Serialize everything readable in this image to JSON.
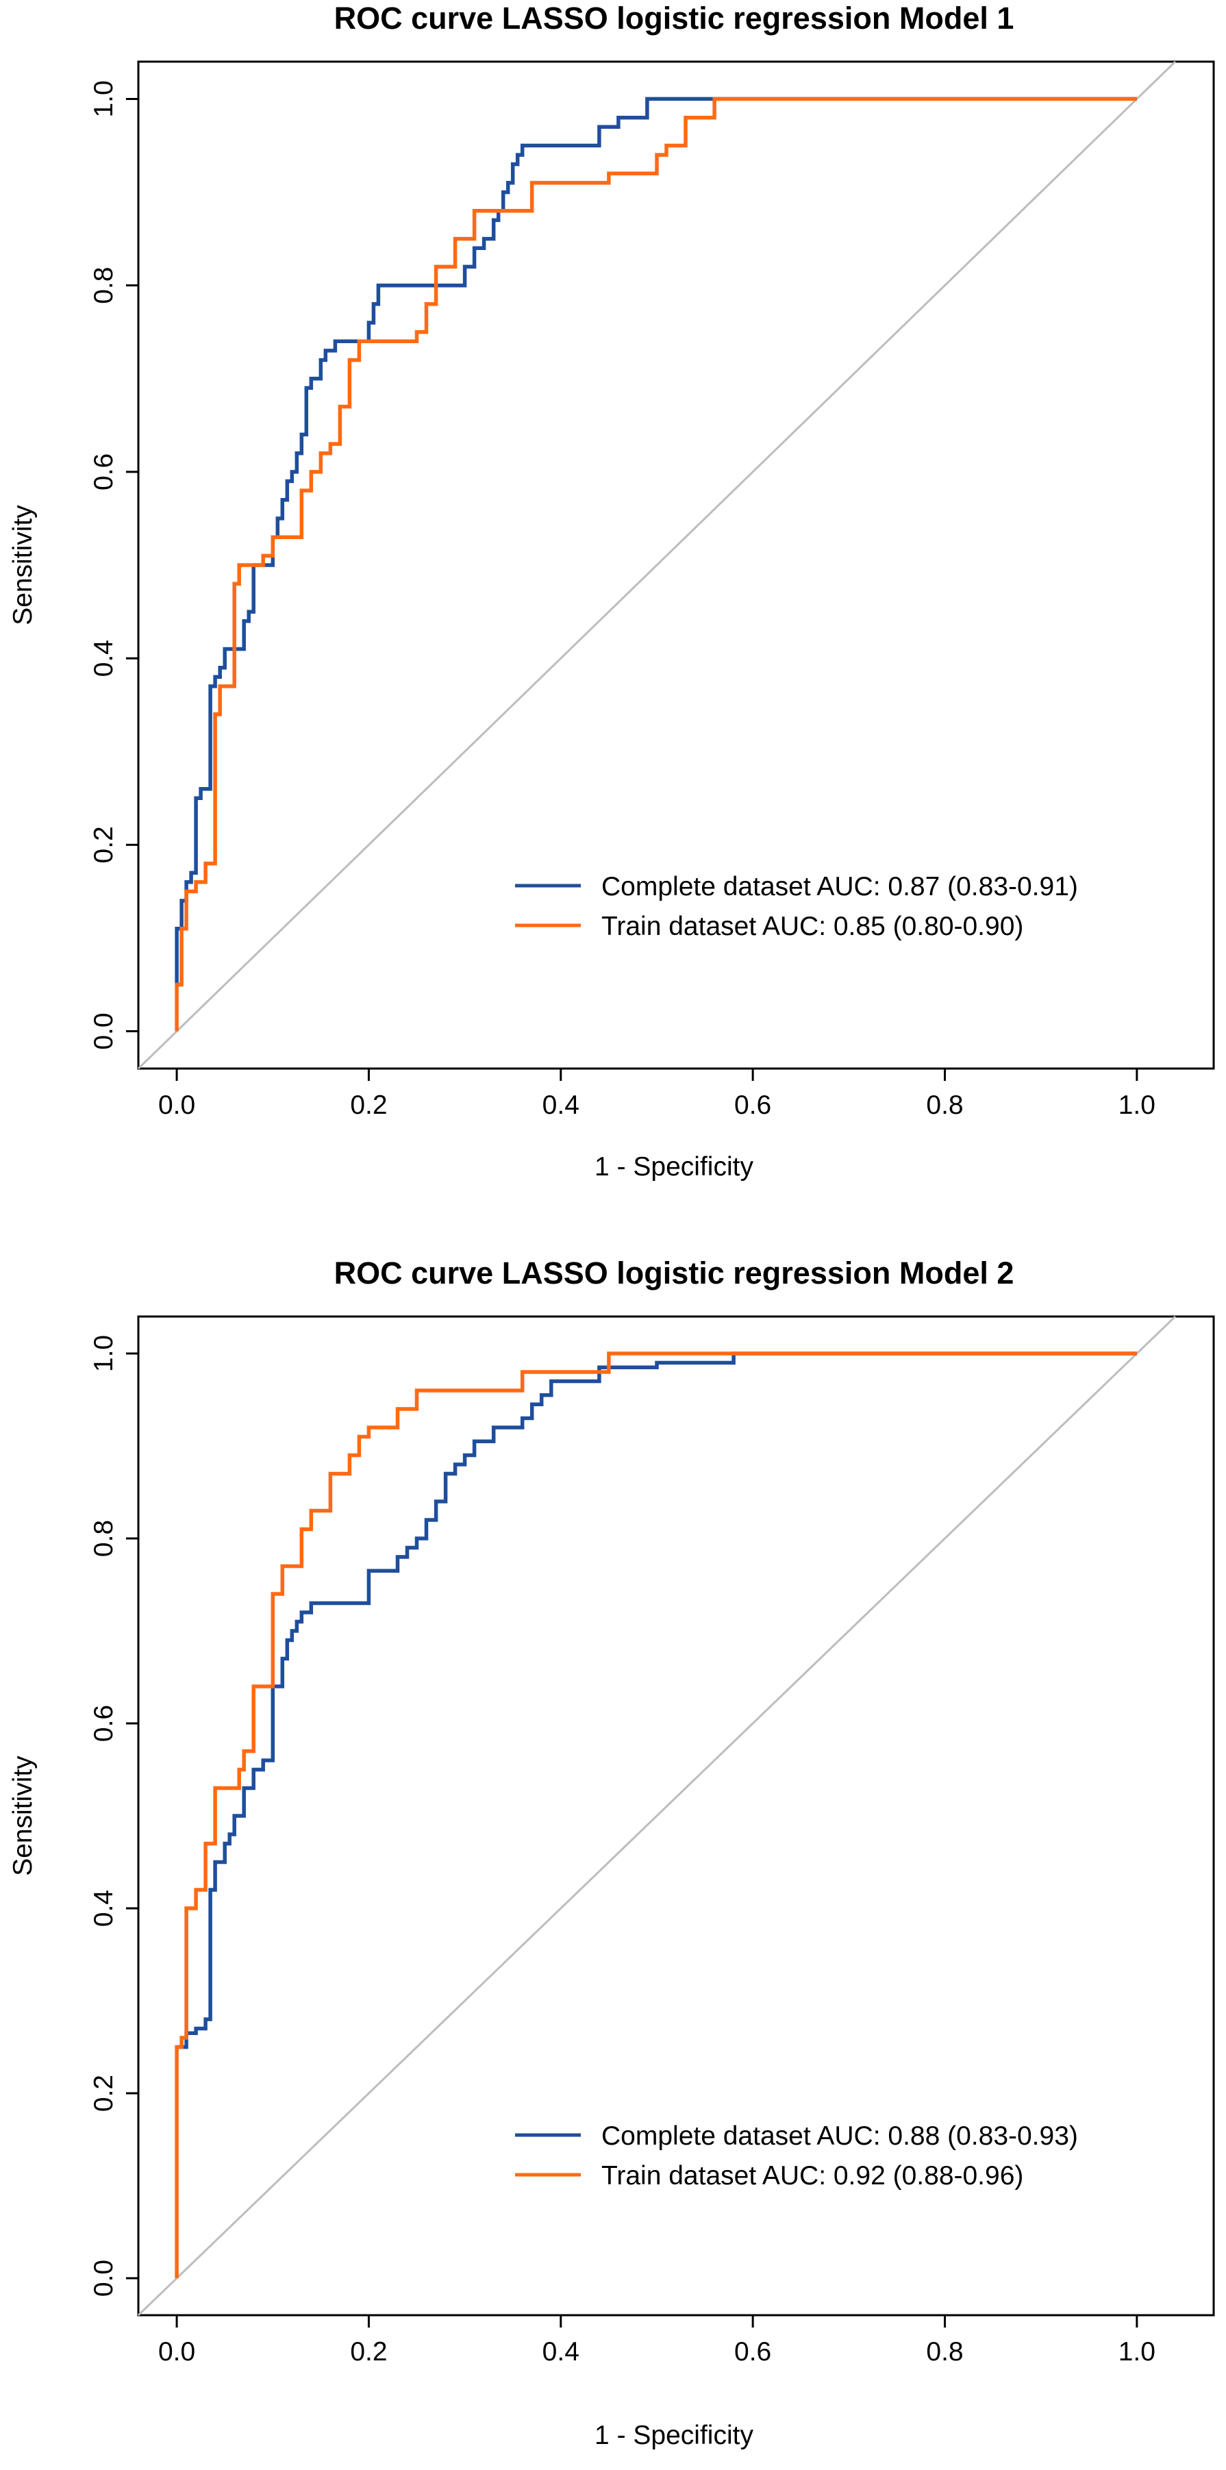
{
  "colors": {
    "complete": "#1f4e9c",
    "train": "#ff6a13",
    "diagonal": "#bdbdbd",
    "axis": "#000000"
  },
  "chart_data": [
    {
      "type": "line",
      "title": "ROC curve LASSO logistic regression Model 1",
      "xlabel": "1 - Specificity",
      "ylabel": "Sensitivity",
      "xlim": [
        -0.04,
        1.08
      ],
      "ylim": [
        -0.04,
        1.04
      ],
      "x_ticks": [
        0.0,
        0.2,
        0.4,
        0.6,
        0.8,
        1.0
      ],
      "x_tick_labels": [
        "0.0",
        "0.2",
        "0.4",
        "0.6",
        "0.8",
        "1.0"
      ],
      "y_ticks": [
        0.0,
        0.2,
        0.4,
        0.6,
        0.8,
        1.0
      ],
      "y_tick_labels": [
        "0.0",
        "0.2",
        "0.4",
        "0.6",
        "0.8",
        "1.0"
      ],
      "reference_line": "diagonal",
      "legend": {
        "placement": "bottom-right",
        "entries": [
          "Complete dataset AUC: 0.87 (0.83-0.91)",
          "Train dataset AUC: 0.85 (0.80-0.90)"
        ]
      },
      "series": [
        {
          "name": "Complete dataset AUC: 0.87 (0.83-0.91)",
          "color_key": "complete",
          "x": [
            0,
            0,
            0.005,
            0.005,
            0.01,
            0.01,
            0.015,
            0.015,
            0.02,
            0.02,
            0.025,
            0.025,
            0.035,
            0.035,
            0.04,
            0.04,
            0.045,
            0.045,
            0.05,
            0.05,
            0.06,
            0.06,
            0.07,
            0.07,
            0.075,
            0.075,
            0.08,
            0.08,
            0.09,
            0.09,
            0.1,
            0.1,
            0.105,
            0.105,
            0.11,
            0.11,
            0.115,
            0.115,
            0.12,
            0.12,
            0.125,
            0.125,
            0.13,
            0.13,
            0.135,
            0.135,
            0.14,
            0.14,
            0.15,
            0.15,
            0.155,
            0.155,
            0.16,
            0.16,
            0.165,
            0.165,
            0.17,
            0.17,
            0.2,
            0.2,
            0.205,
            0.205,
            0.21,
            0.21,
            0.3,
            0.3,
            0.31,
            0.31,
            0.32,
            0.32,
            0.33,
            0.33,
            0.335,
            0.335,
            0.34,
            0.34,
            0.345,
            0.345,
            0.35,
            0.35,
            0.355,
            0.355,
            0.36,
            0.36,
            0.37,
            0.37,
            0.39,
            0.39,
            0.44,
            0.44,
            0.46,
            0.46,
            0.49,
            0.49,
            1.0
          ],
          "y": [
            0.05,
            0.11,
            0.11,
            0.14,
            0.14,
            0.16,
            0.16,
            0.17,
            0.17,
            0.25,
            0.25,
            0.26,
            0.26,
            0.37,
            0.37,
            0.38,
            0.38,
            0.39,
            0.39,
            0.41,
            0.41,
            0.41,
            0.41,
            0.44,
            0.44,
            0.45,
            0.45,
            0.5,
            0.5,
            0.5,
            0.5,
            0.53,
            0.53,
            0.55,
            0.55,
            0.57,
            0.57,
            0.59,
            0.59,
            0.6,
            0.6,
            0.62,
            0.62,
            0.64,
            0.64,
            0.69,
            0.69,
            0.7,
            0.7,
            0.72,
            0.72,
            0.73,
            0.73,
            0.73,
            0.73,
            0.74,
            0.74,
            0.74,
            0.74,
            0.76,
            0.76,
            0.78,
            0.78,
            0.8,
            0.8,
            0.82,
            0.82,
            0.84,
            0.84,
            0.85,
            0.85,
            0.87,
            0.87,
            0.88,
            0.88,
            0.9,
            0.9,
            0.91,
            0.91,
            0.93,
            0.93,
            0.94,
            0.94,
            0.95,
            0.95,
            0.95,
            0.95,
            0.95,
            0.95,
            0.97,
            0.97,
            0.98,
            0.98,
            1.0,
            1.0
          ]
        },
        {
          "name": "Train dataset AUC: 0.85 (0.80-0.90)",
          "color_key": "train",
          "x": [
            0,
            0,
            0.005,
            0.005,
            0.01,
            0.01,
            0.02,
            0.02,
            0.03,
            0.03,
            0.04,
            0.04,
            0.045,
            0.045,
            0.05,
            0.05,
            0.06,
            0.06,
            0.065,
            0.065,
            0.09,
            0.09,
            0.1,
            0.1,
            0.11,
            0.11,
            0.13,
            0.13,
            0.14,
            0.14,
            0.15,
            0.15,
            0.16,
            0.16,
            0.17,
            0.17,
            0.18,
            0.18,
            0.19,
            0.19,
            0.25,
            0.25,
            0.26,
            0.26,
            0.27,
            0.27,
            0.28,
            0.28,
            0.29,
            0.29,
            0.31,
            0.31,
            0.36,
            0.36,
            0.37,
            0.37,
            0.45,
            0.45,
            0.5,
            0.5,
            0.51,
            0.51,
            0.53,
            0.53,
            0.56,
            0.56,
            1.0
          ],
          "y": [
            0,
            0.05,
            0.05,
            0.11,
            0.11,
            0.15,
            0.15,
            0.16,
            0.16,
            0.18,
            0.18,
            0.34,
            0.34,
            0.37,
            0.37,
            0.37,
            0.37,
            0.48,
            0.48,
            0.5,
            0.5,
            0.51,
            0.51,
            0.53,
            0.53,
            0.53,
            0.53,
            0.58,
            0.58,
            0.6,
            0.6,
            0.62,
            0.62,
            0.63,
            0.63,
            0.67,
            0.67,
            0.72,
            0.72,
            0.74,
            0.74,
            0.75,
            0.75,
            0.78,
            0.78,
            0.82,
            0.82,
            0.82,
            0.82,
            0.85,
            0.85,
            0.88,
            0.88,
            0.88,
            0.88,
            0.91,
            0.91,
            0.92,
            0.92,
            0.94,
            0.94,
            0.95,
            0.95,
            0.98,
            0.98,
            1.0,
            1.0
          ]
        }
      ]
    },
    {
      "type": "line",
      "title": "ROC curve LASSO logistic regression Model 2",
      "xlabel": "1 - Specificity",
      "ylabel": "Sensitivity",
      "xlim": [
        -0.04,
        1.08
      ],
      "ylim": [
        -0.04,
        1.04
      ],
      "x_ticks": [
        0.0,
        0.2,
        0.4,
        0.6,
        0.8,
        1.0
      ],
      "x_tick_labels": [
        "0.0",
        "0.2",
        "0.4",
        "0.6",
        "0.8",
        "1.0"
      ],
      "y_ticks": [
        0.0,
        0.2,
        0.4,
        0.6,
        0.8,
        1.0
      ],
      "y_tick_labels": [
        "0.0",
        "0.2",
        "0.4",
        "0.6",
        "0.8",
        "1.0"
      ],
      "reference_line": "diagonal",
      "legend": {
        "placement": "bottom-right",
        "entries": [
          "Complete dataset AUC: 0.88 (0.83-0.93)",
          "Train dataset AUC: 0.92 (0.88-0.96)"
        ]
      },
      "series": [
        {
          "name": "Complete dataset AUC: 0.88 (0.83-0.93)",
          "color_key": "complete",
          "x": [
            0,
            0,
            0.01,
            0.01,
            0.02,
            0.02,
            0.03,
            0.03,
            0.035,
            0.035,
            0.04,
            0.04,
            0.05,
            0.05,
            0.055,
            0.055,
            0.06,
            0.06,
            0.07,
            0.07,
            0.08,
            0.08,
            0.09,
            0.09,
            0.1,
            0.1,
            0.11,
            0.11,
            0.115,
            0.115,
            0.12,
            0.12,
            0.125,
            0.125,
            0.13,
            0.13,
            0.14,
            0.14,
            0.17,
            0.17,
            0.2,
            0.2,
            0.23,
            0.23,
            0.24,
            0.24,
            0.25,
            0.25,
            0.26,
            0.26,
            0.27,
            0.27,
            0.28,
            0.28,
            0.29,
            0.29,
            0.3,
            0.3,
            0.31,
            0.31,
            0.33,
            0.33,
            0.36,
            0.36,
            0.37,
            0.37,
            0.38,
            0.38,
            0.39,
            0.39,
            0.44,
            0.44,
            0.5,
            0.5,
            0.58,
            0.58,
            1.0
          ],
          "y": [
            0.25,
            0.25,
            0.25,
            0.265,
            0.265,
            0.27,
            0.27,
            0.28,
            0.28,
            0.42,
            0.42,
            0.45,
            0.45,
            0.47,
            0.47,
            0.48,
            0.48,
            0.5,
            0.5,
            0.53,
            0.53,
            0.55,
            0.55,
            0.56,
            0.56,
            0.64,
            0.64,
            0.67,
            0.67,
            0.69,
            0.69,
            0.7,
            0.7,
            0.71,
            0.71,
            0.72,
            0.72,
            0.73,
            0.73,
            0.73,
            0.73,
            0.765,
            0.765,
            0.78,
            0.78,
            0.79,
            0.79,
            0.8,
            0.8,
            0.82,
            0.82,
            0.84,
            0.84,
            0.87,
            0.87,
            0.88,
            0.88,
            0.89,
            0.89,
            0.905,
            0.905,
            0.92,
            0.92,
            0.93,
            0.93,
            0.945,
            0.945,
            0.955,
            0.955,
            0.97,
            0.97,
            0.985,
            0.985,
            0.99,
            0.99,
            1.0,
            1.0
          ]
        },
        {
          "name": "Train dataset AUC: 0.92 (0.88-0.96)",
          "color_key": "train",
          "x": [
            0,
            0,
            0.005,
            0.005,
            0.01,
            0.01,
            0.02,
            0.02,
            0.03,
            0.03,
            0.04,
            0.04,
            0.065,
            0.065,
            0.07,
            0.07,
            0.08,
            0.08,
            0.1,
            0.1,
            0.11,
            0.11,
            0.13,
            0.13,
            0.14,
            0.14,
            0.16,
            0.16,
            0.18,
            0.18,
            0.19,
            0.19,
            0.2,
            0.2,
            0.23,
            0.23,
            0.25,
            0.25,
            0.36,
            0.36,
            0.45,
            0.45,
            1.0
          ],
          "y": [
            0,
            0.25,
            0.25,
            0.26,
            0.26,
            0.4,
            0.4,
            0.42,
            0.42,
            0.47,
            0.47,
            0.53,
            0.53,
            0.55,
            0.55,
            0.57,
            0.57,
            0.64,
            0.64,
            0.74,
            0.74,
            0.77,
            0.77,
            0.81,
            0.81,
            0.83,
            0.83,
            0.87,
            0.87,
            0.89,
            0.89,
            0.91,
            0.91,
            0.92,
            0.92,
            0.94,
            0.94,
            0.96,
            0.96,
            0.98,
            0.98,
            1.0,
            1.0
          ]
        }
      ]
    }
  ]
}
